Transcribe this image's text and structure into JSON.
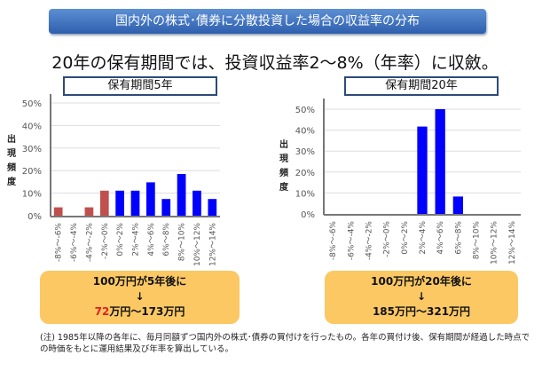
{
  "banner": "国内外の株式･債券に分散投資した場合の収益率の分布",
  "headline": "20年の保有期間では、投資収益率2～8%（年率）に収斂。",
  "chart_data": [
    {
      "type": "bar",
      "title": "保有期間5年",
      "ylabel": "出現頻度",
      "ylim": [
        0,
        50
      ],
      "yticks": [
        "0%",
        "10%",
        "20%",
        "30%",
        "40%",
        "50%"
      ],
      "categories": [
        "-8%～-6%",
        "-6%～-4%",
        "-4%～-2%",
        "-2%～0%",
        "0%～2%",
        "2%～4%",
        "4%～6%",
        "6%～8%",
        "8%～10%",
        "10%～12%",
        "12%～14%"
      ],
      "values": [
        3.7,
        0,
        3.7,
        11.1,
        11.1,
        11.1,
        14.8,
        7.4,
        18.5,
        11.1,
        7.4
      ],
      "colors": {
        "negative": "#c0504d",
        "positive": "#0000ff"
      },
      "grid": true
    },
    {
      "type": "bar",
      "title": "保有期間20年",
      "ylabel": "出現頻度",
      "ylim": [
        0,
        50
      ],
      "yticks": [
        "0%",
        "10%",
        "20%",
        "30%",
        "40%",
        "50%"
      ],
      "categories": [
        "-8%～-6%",
        "-6%～-4%",
        "-4%～-2%",
        "-2%～0%",
        "0%～2%",
        "2%～4%",
        "4%～6%",
        "6%～8%",
        "8%～10%",
        "10%～12%",
        "12%～14%"
      ],
      "values": [
        0,
        0,
        0,
        0,
        0,
        41.7,
        50,
        8.3,
        0,
        0,
        0
      ],
      "colors": {
        "negative": "#c0504d",
        "positive": "#0000ff"
      },
      "grid": true
    }
  ],
  "callouts": [
    {
      "line1": "100万円が5年後に",
      "arrow": "↓",
      "low": "72",
      "rest": "万円～173万円"
    },
    {
      "line1": "100万円が20年後に",
      "arrow": "↓",
      "low": "185",
      "rest": "万円～321万円"
    }
  ],
  "note": "(注) 1985年以降の各年に、毎月同額ずつ国内外の株式･債券の買付けを行ったもの。各年の買付け後、保有期間が経過した時点での時価をもとに運用結果及び年率を算出している。"
}
